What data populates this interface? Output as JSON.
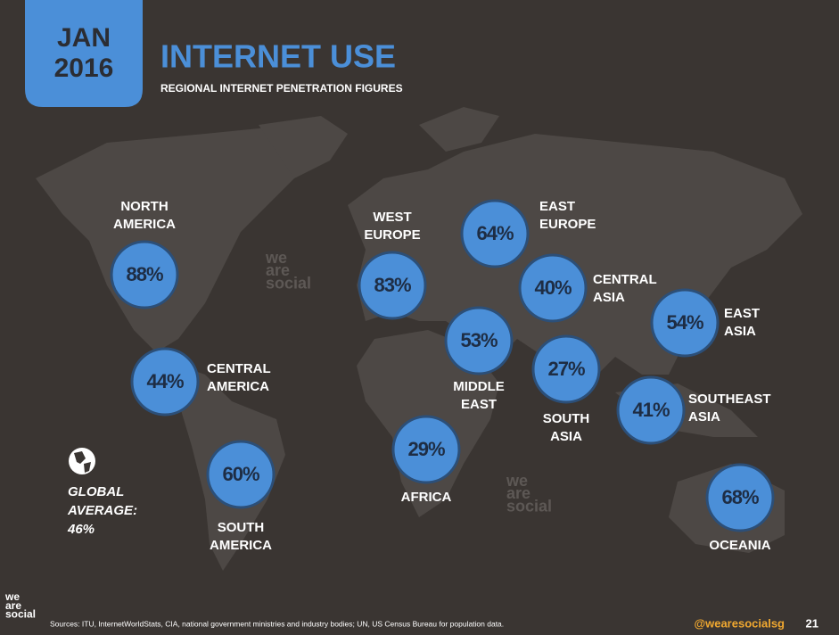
{
  "header": {
    "month": "JAN",
    "year": "2016",
    "title": "INTERNET USE",
    "subtitle": "REGIONAL INTERNET PENETRATION FIGURES"
  },
  "regions": [
    {
      "name": [
        "NORTH",
        "AMERICA"
      ],
      "value": "88%"
    },
    {
      "name": [
        "CENTRAL",
        "AMERICA"
      ],
      "value": "44%"
    },
    {
      "name": [
        "SOUTH",
        "AMERICA"
      ],
      "value": "60%"
    },
    {
      "name": [
        "WEST",
        "EUROPE"
      ],
      "value": "83%"
    },
    {
      "name": [
        "EAST",
        "EUROPE"
      ],
      "value": "64%"
    },
    {
      "name": [
        "CENTRAL",
        "ASIA"
      ],
      "value": "40%"
    },
    {
      "name": [
        "MIDDLE",
        "EAST"
      ],
      "value": "53%"
    },
    {
      "name": [
        "AFRICA"
      ],
      "value": "29%"
    },
    {
      "name": [
        "SOUTH",
        "ASIA"
      ],
      "value": "27%"
    },
    {
      "name": [
        "EAST",
        "ASIA"
      ],
      "value": "54%"
    },
    {
      "name": [
        "SOUTHEAST",
        "ASIA"
      ],
      "value": "41%"
    },
    {
      "name": [
        "OCEANIA"
      ],
      "value": "68%"
    }
  ],
  "global": {
    "label": [
      "GLOBAL",
      "AVERAGE:"
    ],
    "value": "46%"
  },
  "brand": [
    "we",
    "are",
    "social"
  ],
  "footer": {
    "sources": "Sources: ITU, InternetWorldStats, CIA, national government ministries and industry bodies; UN, US Census Bureau for population data.",
    "handle": "@wearesocialsg",
    "page": "21"
  }
}
